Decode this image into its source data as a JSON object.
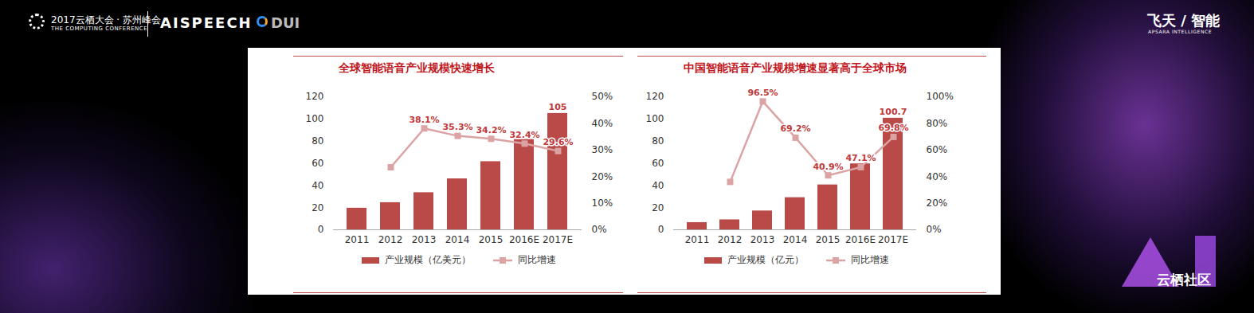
{
  "slide": {
    "conference": "2017云栖大会 · 苏州峰会",
    "conference_en": "THE COMPUTING CONFERENCE",
    "logos": [
      "AISPEECH",
      "DUI"
    ],
    "brand": "飞天 / 智能",
    "brand_en": "APSARA INTELLIGENCE",
    "community": "云栖社区"
  },
  "chart_data": [
    {
      "type": "bar",
      "title": "全球智能语音产业规模快速增长",
      "categories": [
        "2011",
        "2012",
        "2013",
        "2014",
        "2015",
        "2016E",
        "2017E"
      ],
      "series": [
        {
          "name": "产业规模（亿美元）",
          "type": "bar",
          "color": "#b94a48",
          "values": [
            19.5,
            24.5,
            33.5,
            46,
            61.5,
            81.5,
            105
          ],
          "value_labels": [
            null,
            null,
            null,
            null,
            null,
            null,
            "105"
          ]
        },
        {
          "name": "同比增速",
          "type": "line",
          "axis": "y2",
          "color": "#dba3a3",
          "marker": "square",
          "values": [
            null,
            23.5,
            38.1,
            35.3,
            34.2,
            32.4,
            29.6
          ],
          "value_labels": [
            null,
            null,
            "38.1%",
            "35.3%",
            "34.2%",
            "32.4%",
            "29.6%"
          ]
        }
      ],
      "ylim": [
        0,
        120
      ],
      "yticks": [
        0,
        20,
        40,
        60,
        80,
        100,
        120
      ],
      "y2lim": [
        0,
        50
      ],
      "y2ticks": [
        {
          "value": 0,
          "label": "0%"
        },
        {
          "value": 10,
          "label": "10%"
        },
        {
          "value": 20,
          "label": "20%"
        },
        {
          "value": 30,
          "label": "30%"
        },
        {
          "value": 40,
          "label": "40%"
        },
        {
          "value": 50,
          "label": "50%"
        }
      ],
      "legend": "bottom"
    },
    {
      "type": "bar",
      "title": "中国智能语音产业规模增速显著高于全球市场",
      "categories": [
        "2011",
        "2012",
        "2013",
        "2014",
        "2015",
        "2016E",
        "2017E"
      ],
      "series": [
        {
          "name": "产业规模（亿元）",
          "type": "bar",
          "color": "#b94a48",
          "values": [
            6.5,
            9,
            17,
            29,
            40.5,
            59.5,
            100.7
          ],
          "value_labels": [
            null,
            null,
            null,
            null,
            null,
            null,
            "100.7"
          ]
        },
        {
          "name": "同比增速",
          "type": "line",
          "axis": "y2",
          "color": "#dba3a3",
          "marker": "square",
          "values": [
            null,
            36,
            96.5,
            69.2,
            40.9,
            47.1,
            69.8
          ],
          "value_labels": [
            null,
            null,
            "96.5%",
            "69.2%",
            "40.9%",
            "47.1%",
            "69.8%"
          ]
        }
      ],
      "ylim": [
        0,
        120
      ],
      "yticks": [
        0,
        20,
        40,
        60,
        80,
        100,
        120
      ],
      "y2lim": [
        0,
        100
      ],
      "y2ticks": [
        {
          "value": 0,
          "label": "0%"
        },
        {
          "value": 20,
          "label": "20%"
        },
        {
          "value": 40,
          "label": "40%"
        },
        {
          "value": 60,
          "label": "60%"
        },
        {
          "value": 80,
          "label": "80%"
        },
        {
          "value": 100,
          "label": "100%"
        }
      ],
      "legend": "bottom"
    }
  ]
}
